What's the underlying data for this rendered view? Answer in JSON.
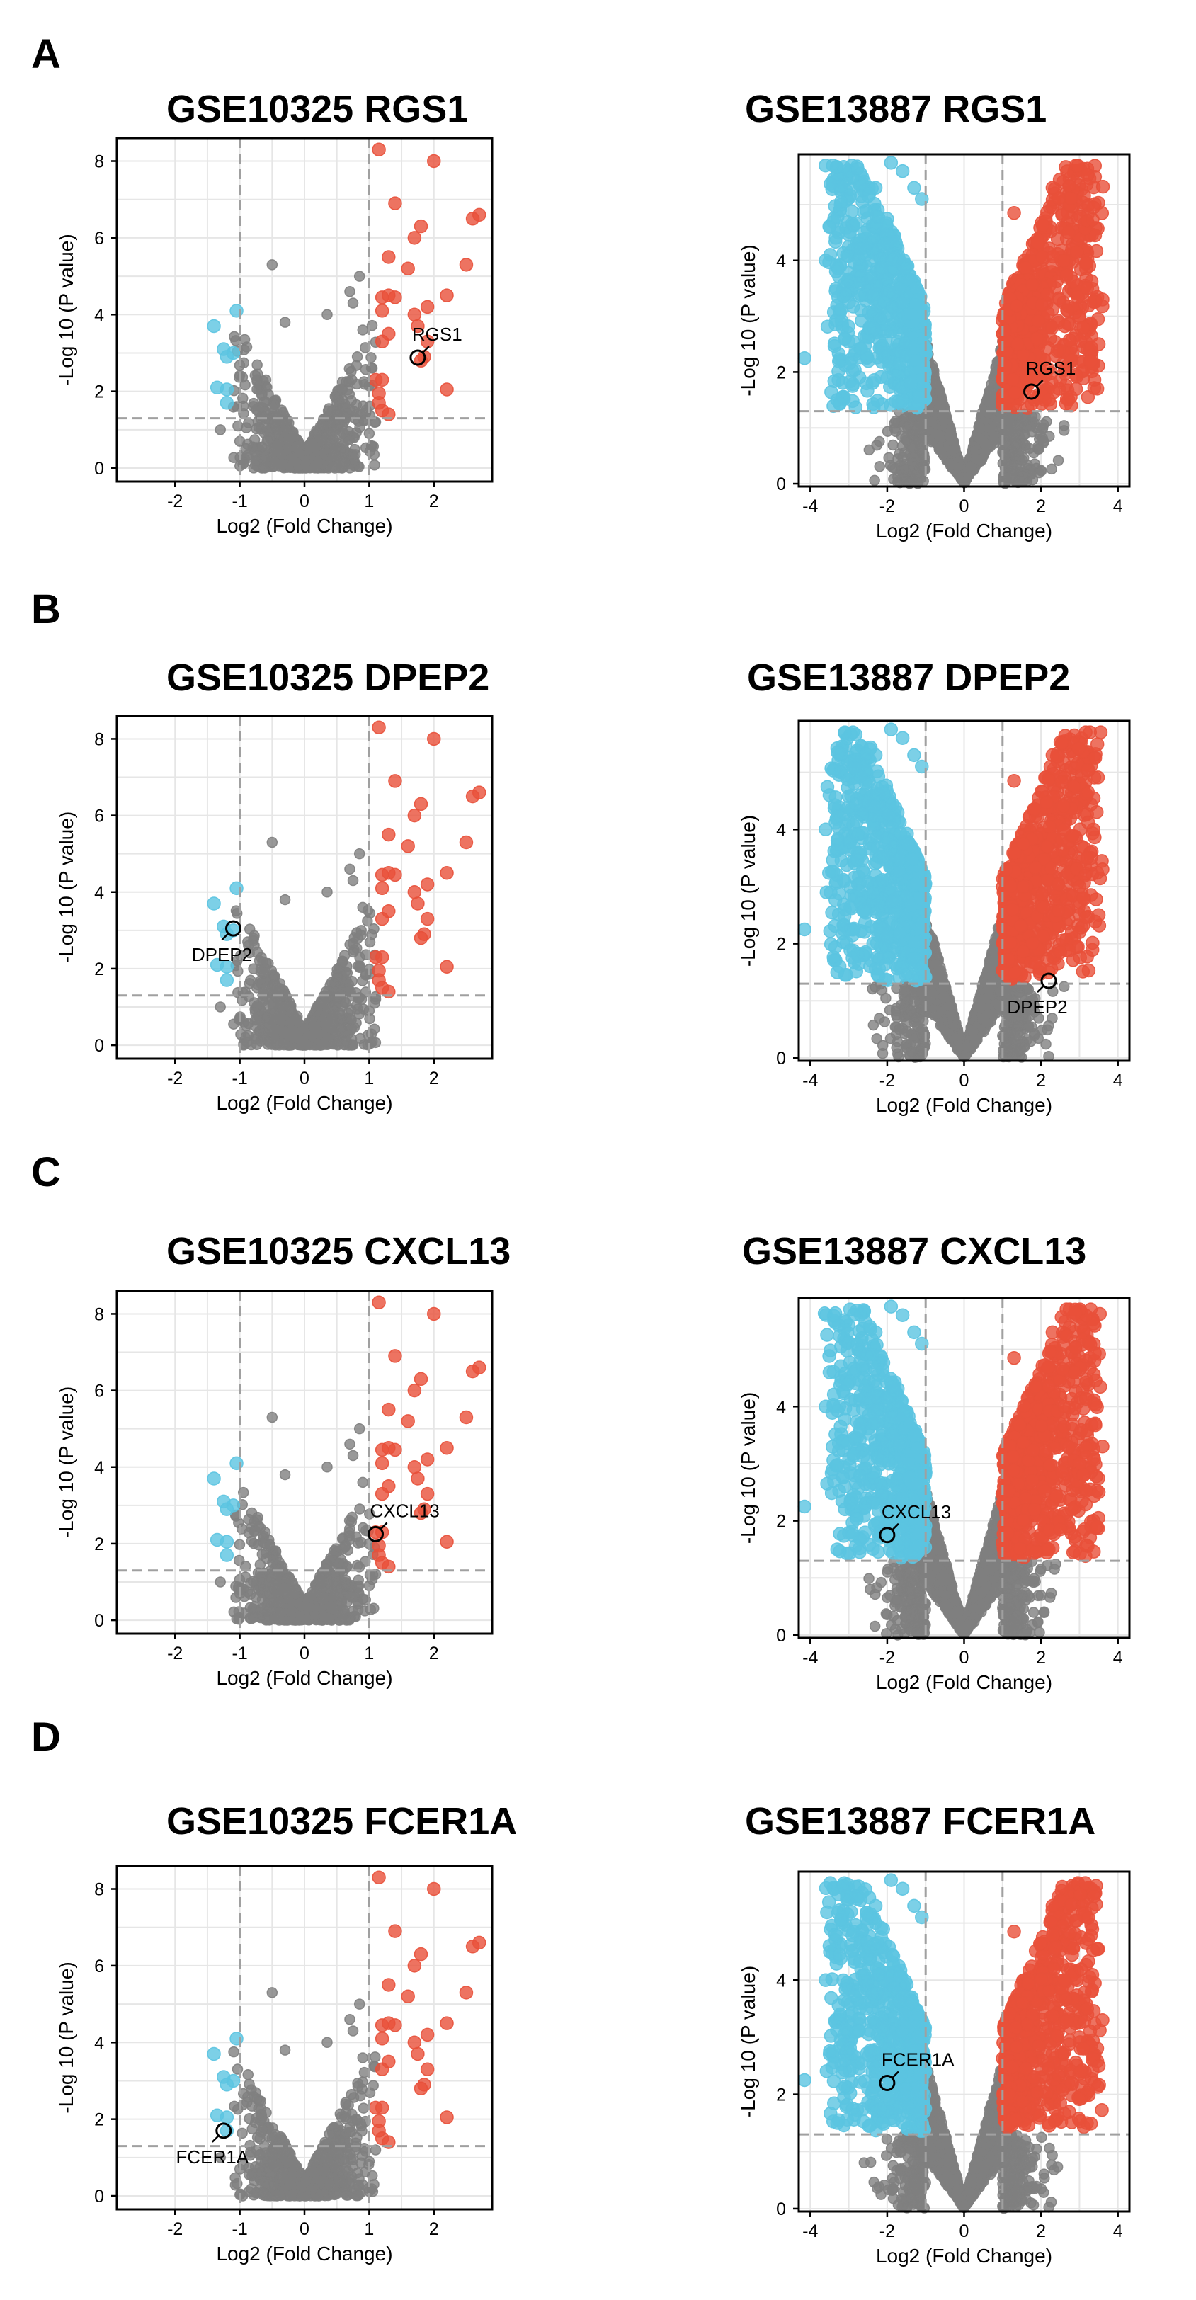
{
  "colors": {
    "up": "#E8503A",
    "down": "#5BC4E1",
    "ns": "#808080",
    "grid": "#E6E6E6",
    "ref": "#A0A0A0"
  },
  "chart_data": [
    {
      "panel": "A",
      "title": "GSE10325 RGS1",
      "type": "scatter",
      "xlabel": "Log2 (Fold Change)",
      "ylabel": "-Log 10 (P value)",
      "xlim": [
        -2.9,
        2.9
      ],
      "ylim": [
        -0.35,
        8.6
      ],
      "xticks": [
        -2,
        -1,
        0,
        1,
        2
      ],
      "yticks": [
        0,
        2,
        4,
        6,
        8
      ],
      "fc_cutoff": 1,
      "p_cutoff": 1.3,
      "highlight": {
        "label": "RGS1",
        "x": 1.75,
        "y": 2.88,
        "label_pos": "above-right"
      },
      "up_points": [
        [
          1.15,
          8.3
        ],
        [
          2.0,
          8.0
        ],
        [
          1.4,
          6.9
        ],
        [
          2.7,
          6.6
        ],
        [
          2.6,
          6.5
        ],
        [
          1.8,
          6.3
        ],
        [
          1.7,
          6.0
        ],
        [
          1.3,
          5.5
        ],
        [
          1.6,
          5.2
        ],
        [
          2.5,
          5.3
        ],
        [
          1.2,
          4.45
        ],
        [
          1.3,
          4.5
        ],
        [
          1.4,
          4.45
        ],
        [
          1.2,
          4.1
        ],
        [
          1.9,
          4.2
        ],
        [
          1.7,
          4.0
        ],
        [
          1.75,
          3.7
        ],
        [
          2.2,
          4.5
        ],
        [
          1.3,
          3.5
        ],
        [
          1.2,
          3.3
        ],
        [
          1.9,
          3.3
        ],
        [
          1.85,
          2.9
        ],
        [
          1.8,
          2.8
        ],
        [
          1.1,
          2.3
        ],
        [
          1.2,
          2.3
        ],
        [
          2.2,
          2.05
        ],
        [
          1.15,
          1.95
        ],
        [
          1.15,
          1.7
        ],
        [
          1.2,
          1.5
        ],
        [
          1.3,
          1.4
        ]
      ],
      "down_points": [
        [
          -1.4,
          3.7
        ],
        [
          -1.05,
          4.1
        ],
        [
          -1.25,
          3.1
        ],
        [
          -1.1,
          3.0
        ],
        [
          -1.2,
          2.9
        ],
        [
          -1.35,
          2.1
        ],
        [
          -1.2,
          2.05
        ],
        [
          -1.2,
          1.7
        ]
      ],
      "ns": {
        "x_range": [
          -1.1,
          1.1
        ],
        "ymax": 5.3,
        "spread": 1.3
      }
    },
    {
      "panel": "A",
      "title": "GSE13887 RGS1",
      "type": "scatter",
      "xlabel": "Log2 (Fold Change)",
      "ylabel": "-Log 10 (P value)",
      "xlim": [
        -4.3,
        4.3
      ],
      "ylim": [
        -0.05,
        5.9
      ],
      "xticks": [
        -4,
        -2,
        0,
        2,
        4
      ],
      "yticks": [
        0,
        2,
        4
      ],
      "fc_cutoff": 1,
      "p_cutoff": 1.3,
      "highlight": {
        "label": "RGS1",
        "x": 1.75,
        "y": 1.65,
        "label_pos": "above-right"
      },
      "up_points": [],
      "down_points": [],
      "dense": {
        "up_n": 700,
        "down_n": 700,
        "ns_n": 2200,
        "xmax": 3.6,
        "ymax": 5.7
      }
    },
    {
      "panel": "B",
      "title": "GSE10325 DPEP2",
      "type": "scatter",
      "xlabel": "Log2 (Fold Change)",
      "ylabel": "-Log 10 (P value)",
      "xlim": [
        -2.9,
        2.9
      ],
      "ylim": [
        -0.35,
        8.6
      ],
      "xticks": [
        -2,
        -1,
        0,
        1,
        2
      ],
      "yticks": [
        0,
        2,
        4,
        6,
        8
      ],
      "fc_cutoff": 1,
      "p_cutoff": 1.3,
      "highlight": {
        "label": "DPEP2",
        "x": -1.1,
        "y": 3.05,
        "label_pos": "below-left"
      },
      "up_points": [
        [
          1.15,
          8.3
        ],
        [
          2.0,
          8.0
        ],
        [
          1.4,
          6.9
        ],
        [
          2.7,
          6.6
        ],
        [
          2.6,
          6.5
        ],
        [
          1.8,
          6.3
        ],
        [
          1.7,
          6.0
        ],
        [
          1.3,
          5.5
        ],
        [
          1.6,
          5.2
        ],
        [
          2.5,
          5.3
        ],
        [
          1.2,
          4.45
        ],
        [
          1.3,
          4.5
        ],
        [
          1.4,
          4.45
        ],
        [
          1.2,
          4.1
        ],
        [
          1.9,
          4.2
        ],
        [
          1.7,
          4.0
        ],
        [
          1.75,
          3.7
        ],
        [
          2.2,
          4.5
        ],
        [
          1.3,
          3.5
        ],
        [
          1.2,
          3.3
        ],
        [
          1.9,
          3.3
        ],
        [
          1.85,
          2.9
        ],
        [
          1.8,
          2.8
        ],
        [
          1.1,
          2.3
        ],
        [
          1.2,
          2.3
        ],
        [
          2.2,
          2.05
        ],
        [
          1.15,
          1.95
        ],
        [
          1.15,
          1.7
        ],
        [
          1.2,
          1.5
        ],
        [
          1.3,
          1.4
        ]
      ],
      "down_points": [
        [
          -1.4,
          3.7
        ],
        [
          -1.05,
          4.1
        ],
        [
          -1.25,
          3.1
        ],
        [
          -1.1,
          3.0
        ],
        [
          -1.2,
          2.9
        ],
        [
          -1.35,
          2.1
        ],
        [
          -1.2,
          2.05
        ],
        [
          -1.2,
          1.7
        ]
      ],
      "ns": {
        "x_range": [
          -1.1,
          1.1
        ],
        "ymax": 5.3,
        "spread": 1.3
      }
    },
    {
      "panel": "B",
      "title": "GSE13887 DPEP2",
      "type": "scatter",
      "xlabel": "Log2 (Fold Change)",
      "ylabel": "-Log 10 (P value)",
      "xlim": [
        -4.3,
        4.3
      ],
      "ylim": [
        -0.05,
        5.9
      ],
      "xticks": [
        -4,
        -2,
        0,
        2,
        4
      ],
      "yticks": [
        0,
        2,
        4
      ],
      "fc_cutoff": 1,
      "p_cutoff": 1.3,
      "highlight": {
        "label": "DPEP2",
        "x": 2.2,
        "y": 1.35,
        "label_pos": "below-left"
      },
      "up_points": [],
      "down_points": [],
      "dense": {
        "up_n": 700,
        "down_n": 700,
        "ns_n": 2200,
        "xmax": 3.6,
        "ymax": 5.7
      }
    },
    {
      "panel": "C",
      "title": "GSE10325 CXCL13",
      "type": "scatter",
      "xlabel": "Log2 (Fold Change)",
      "ylabel": "-Log 10 (P value)",
      "xlim": [
        -2.9,
        2.9
      ],
      "ylim": [
        -0.35,
        8.6
      ],
      "xticks": [
        -2,
        -1,
        0,
        1,
        2
      ],
      "yticks": [
        0,
        2,
        4,
        6,
        8
      ],
      "fc_cutoff": 1,
      "p_cutoff": 1.3,
      "highlight": {
        "label": "CXCL13",
        "x": 1.1,
        "y": 2.25,
        "label_pos": "above-right"
      },
      "up_points": [
        [
          1.15,
          8.3
        ],
        [
          2.0,
          8.0
        ],
        [
          1.4,
          6.9
        ],
        [
          2.7,
          6.6
        ],
        [
          2.6,
          6.5
        ],
        [
          1.8,
          6.3
        ],
        [
          1.7,
          6.0
        ],
        [
          1.3,
          5.5
        ],
        [
          1.6,
          5.2
        ],
        [
          2.5,
          5.3
        ],
        [
          1.2,
          4.45
        ],
        [
          1.3,
          4.5
        ],
        [
          1.4,
          4.45
        ],
        [
          1.2,
          4.1
        ],
        [
          1.9,
          4.2
        ],
        [
          1.7,
          4.0
        ],
        [
          1.75,
          3.7
        ],
        [
          2.2,
          4.5
        ],
        [
          1.3,
          3.5
        ],
        [
          1.2,
          3.3
        ],
        [
          1.9,
          3.3
        ],
        [
          1.85,
          2.9
        ],
        [
          1.8,
          2.8
        ],
        [
          1.1,
          2.3
        ],
        [
          1.2,
          2.3
        ],
        [
          2.2,
          2.05
        ],
        [
          1.15,
          1.95
        ],
        [
          1.15,
          1.7
        ],
        [
          1.2,
          1.5
        ],
        [
          1.3,
          1.4
        ]
      ],
      "down_points": [
        [
          -1.4,
          3.7
        ],
        [
          -1.05,
          4.1
        ],
        [
          -1.25,
          3.1
        ],
        [
          -1.1,
          3.0
        ],
        [
          -1.2,
          2.9
        ],
        [
          -1.35,
          2.1
        ],
        [
          -1.2,
          2.05
        ],
        [
          -1.2,
          1.7
        ]
      ],
      "ns": {
        "x_range": [
          -1.1,
          1.1
        ],
        "ymax": 5.3,
        "spread": 1.3
      }
    },
    {
      "panel": "C",
      "title": "GSE13887 CXCL13",
      "type": "scatter",
      "xlabel": "Log2 (Fold Change)",
      "ylabel": "-Log 10 (P value)",
      "xlim": [
        -4.3,
        4.3
      ],
      "ylim": [
        -0.05,
        5.9
      ],
      "xticks": [
        -4,
        -2,
        0,
        2,
        4
      ],
      "yticks": [
        0,
        2,
        4
      ],
      "fc_cutoff": 1,
      "p_cutoff": 1.3,
      "highlight": {
        "label": "CXCL13",
        "x": -2.0,
        "y": 1.75,
        "label_pos": "above-right"
      },
      "up_points": [],
      "down_points": [],
      "dense": {
        "up_n": 700,
        "down_n": 700,
        "ns_n": 2200,
        "xmax": 3.6,
        "ymax": 5.7
      }
    },
    {
      "panel": "D",
      "title": "GSE10325 FCER1A",
      "type": "scatter",
      "xlabel": "Log2 (Fold Change)",
      "ylabel": "-Log 10 (P value)",
      "xlim": [
        -2.9,
        2.9
      ],
      "ylim": [
        -0.35,
        8.6
      ],
      "xticks": [
        -2,
        -1,
        0,
        1,
        2
      ],
      "yticks": [
        0,
        2,
        4,
        6,
        8
      ],
      "fc_cutoff": 1,
      "p_cutoff": 1.3,
      "highlight": {
        "label": "FCER1A",
        "x": -1.25,
        "y": 1.7,
        "label_pos": "below-left"
      },
      "up_points": [
        [
          1.15,
          8.3
        ],
        [
          2.0,
          8.0
        ],
        [
          1.4,
          6.9
        ],
        [
          2.7,
          6.6
        ],
        [
          2.6,
          6.5
        ],
        [
          1.8,
          6.3
        ],
        [
          1.7,
          6.0
        ],
        [
          1.3,
          5.5
        ],
        [
          1.6,
          5.2
        ],
        [
          2.5,
          5.3
        ],
        [
          1.2,
          4.45
        ],
        [
          1.3,
          4.5
        ],
        [
          1.4,
          4.45
        ],
        [
          1.2,
          4.1
        ],
        [
          1.9,
          4.2
        ],
        [
          1.7,
          4.0
        ],
        [
          1.75,
          3.7
        ],
        [
          2.2,
          4.5
        ],
        [
          1.3,
          3.5
        ],
        [
          1.2,
          3.3
        ],
        [
          1.9,
          3.3
        ],
        [
          1.85,
          2.9
        ],
        [
          1.8,
          2.8
        ],
        [
          1.1,
          2.3
        ],
        [
          1.2,
          2.3
        ],
        [
          2.2,
          2.05
        ],
        [
          1.15,
          1.95
        ],
        [
          1.15,
          1.7
        ],
        [
          1.2,
          1.5
        ],
        [
          1.3,
          1.4
        ]
      ],
      "down_points": [
        [
          -1.4,
          3.7
        ],
        [
          -1.05,
          4.1
        ],
        [
          -1.25,
          3.1
        ],
        [
          -1.1,
          3.0
        ],
        [
          -1.2,
          2.9
        ],
        [
          -1.35,
          2.1
        ],
        [
          -1.2,
          2.05
        ],
        [
          -1.2,
          1.7
        ]
      ],
      "ns": {
        "x_range": [
          -1.1,
          1.1
        ],
        "ymax": 5.3,
        "spread": 1.3
      }
    },
    {
      "panel": "D",
      "title": "GSE13887 FCER1A",
      "type": "scatter",
      "xlabel": "Log2 (Fold Change)",
      "ylabel": "-Log 10 (P value)",
      "xlim": [
        -4.3,
        4.3
      ],
      "ylim": [
        -0.05,
        5.9
      ],
      "xticks": [
        -4,
        -2,
        0,
        2,
        4
      ],
      "yticks": [
        0,
        2,
        4
      ],
      "fc_cutoff": 1,
      "p_cutoff": 1.3,
      "highlight": {
        "label": "FCER1A",
        "x": -2.0,
        "y": 2.2,
        "label_pos": "above-right"
      },
      "up_points": [],
      "down_points": [],
      "dense": {
        "up_n": 700,
        "down_n": 700,
        "ns_n": 2200,
        "xmax": 3.6,
        "ymax": 5.7
      }
    }
  ]
}
